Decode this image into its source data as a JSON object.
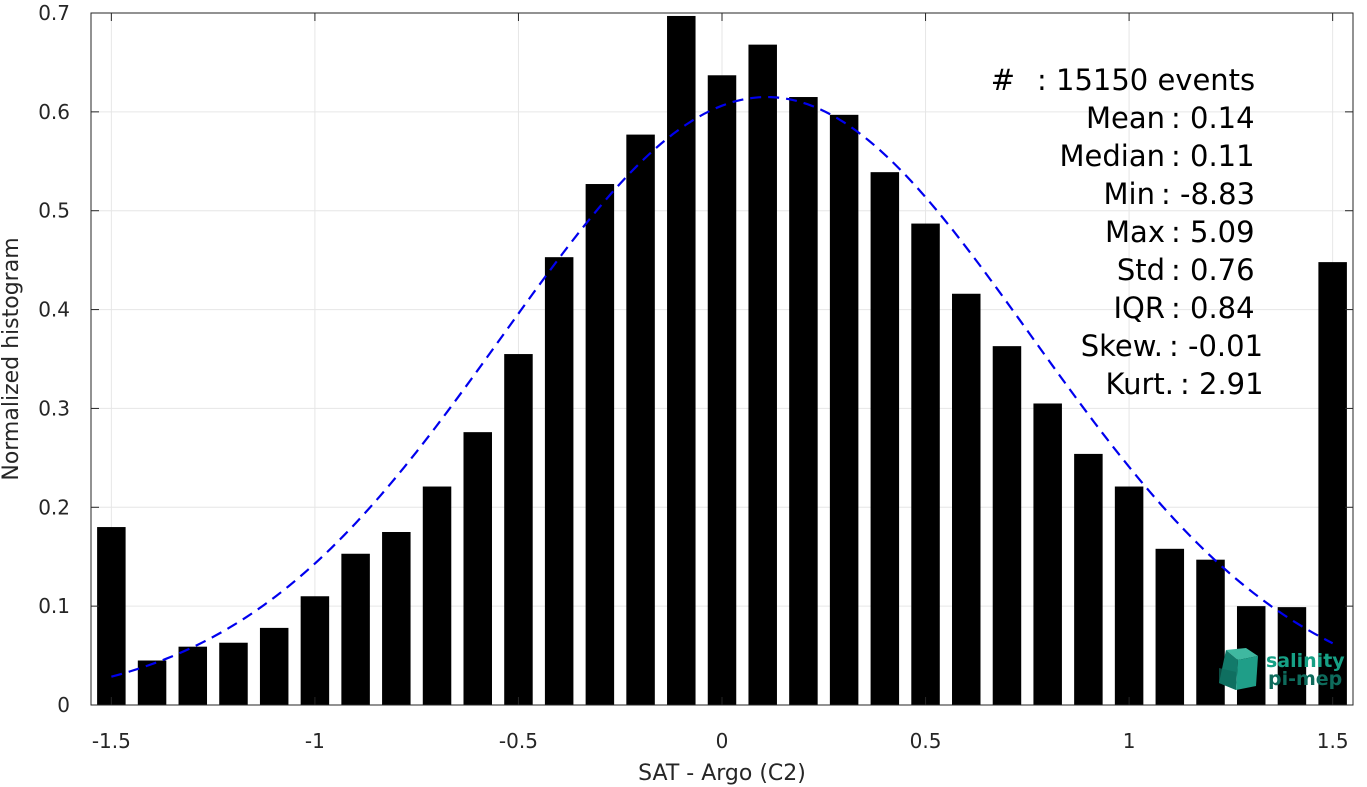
{
  "chart_data": {
    "type": "bar",
    "xlabel": "SAT - Argo (C2)",
    "ylabel": "Normalized histogram",
    "xlim": [
      -1.55,
      1.55
    ],
    "ylim": [
      0,
      0.7
    ],
    "xticks": [
      -1.5,
      -1,
      -0.5,
      0,
      0.5,
      1,
      1.5
    ],
    "xtick_labels": [
      "-1.5",
      "-1",
      "-0.5",
      "0",
      "0.5",
      "1",
      "1.5"
    ],
    "yticks": [
      0,
      0.1,
      0.2,
      0.3,
      0.4,
      0.5,
      0.6,
      0.7
    ],
    "ytick_labels": [
      "0",
      "0.1",
      "0.2",
      "0.3",
      "0.4",
      "0.5",
      "0.6",
      "0.7"
    ],
    "grid": true,
    "bar_width": 0.07,
    "bars": [
      {
        "x": -1.5,
        "y": 0.18
      },
      {
        "x": -1.4,
        "y": 0.045
      },
      {
        "x": -1.3,
        "y": 0.059
      },
      {
        "x": -1.2,
        "y": 0.063
      },
      {
        "x": -1.1,
        "y": 0.078
      },
      {
        "x": -1.0,
        "y": 0.11
      },
      {
        "x": -0.9,
        "y": 0.153
      },
      {
        "x": -0.8,
        "y": 0.175
      },
      {
        "x": -0.7,
        "y": 0.221
      },
      {
        "x": -0.6,
        "y": 0.276
      },
      {
        "x": -0.5,
        "y": 0.355
      },
      {
        "x": -0.4,
        "y": 0.453
      },
      {
        "x": -0.3,
        "y": 0.527
      },
      {
        "x": -0.2,
        "y": 0.577
      },
      {
        "x": -0.1,
        "y": 0.697
      },
      {
        "x": 0.0,
        "y": 0.637
      },
      {
        "x": 0.1,
        "y": 0.668
      },
      {
        "x": 0.2,
        "y": 0.615
      },
      {
        "x": 0.3,
        "y": 0.597
      },
      {
        "x": 0.4,
        "y": 0.539
      },
      {
        "x": 0.5,
        "y": 0.487
      },
      {
        "x": 0.6,
        "y": 0.416
      },
      {
        "x": 0.7,
        "y": 0.363
      },
      {
        "x": 0.8,
        "y": 0.305
      },
      {
        "x": 0.9,
        "y": 0.254
      },
      {
        "x": 1.0,
        "y": 0.221
      },
      {
        "x": 1.1,
        "y": 0.158
      },
      {
        "x": 1.2,
        "y": 0.147
      },
      {
        "x": 1.3,
        "y": 0.1
      },
      {
        "x": 1.4,
        "y": 0.099
      },
      {
        "x": 1.5,
        "y": 0.448
      }
    ],
    "fit_curve": {
      "type": "gaussian",
      "mean": 0.11,
      "std": 0.65,
      "peak": 0.615,
      "x_range": [
        -1.5,
        1.5
      ],
      "color": "#0000ee",
      "style": "dashed"
    },
    "bar_color": "#000000",
    "stats": [
      {
        "label": "#",
        "value": ": 15150 events"
      },
      {
        "label": "Mean",
        "value": ": 0.14"
      },
      {
        "label": "Median",
        "value": ": 0.11"
      },
      {
        "label": "Min",
        "value": ": -8.83"
      },
      {
        "label": "Max",
        "value": ": 5.09"
      },
      {
        "label": "Std",
        "value": ": 0.76"
      },
      {
        "label": "IQR",
        "value": ": 0.84"
      },
      {
        "label": "Skew.",
        "value": ": -0.01"
      },
      {
        "label": "Kurt.",
        "value": ": 2.91"
      }
    ]
  },
  "logo": {
    "line1": "salinity",
    "line2": "pi-mep",
    "color": "#16a085"
  }
}
